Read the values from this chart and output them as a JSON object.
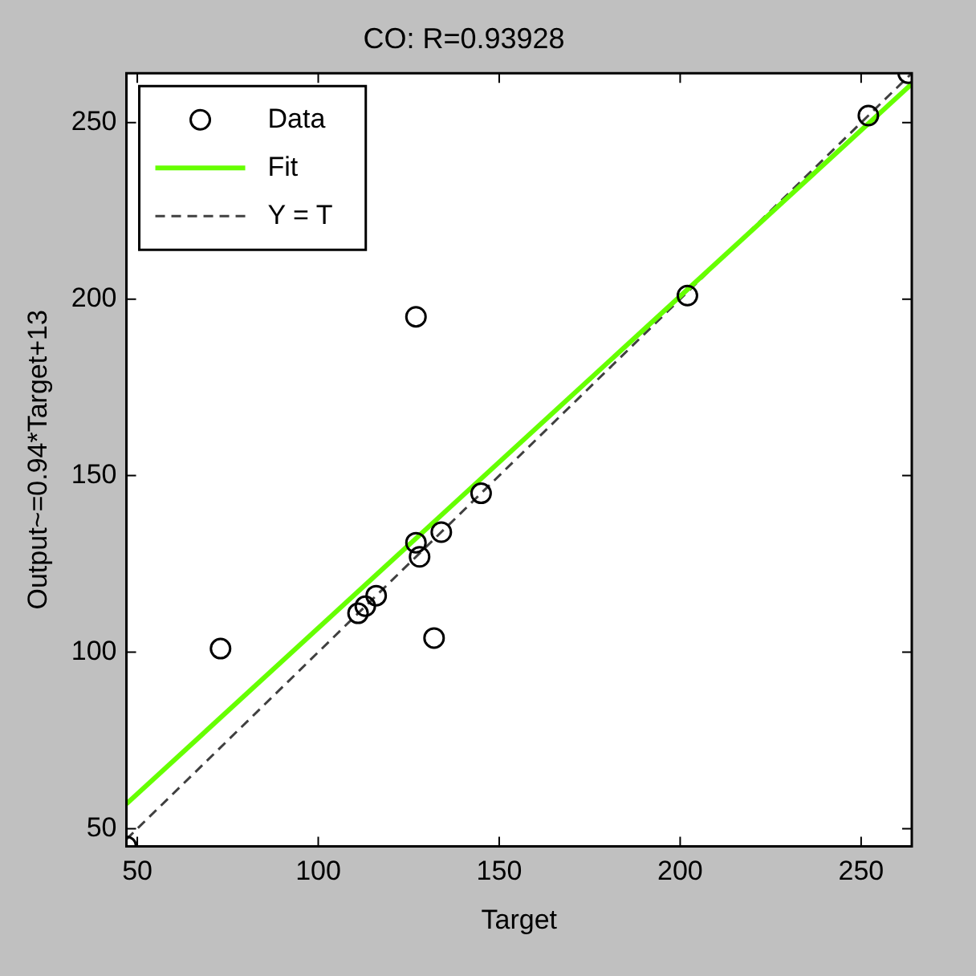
{
  "chart_data": {
    "type": "scatter",
    "title": "CO: R=0.93928",
    "xlabel": "Target",
    "ylabel": "Output~=0.94*Target+13",
    "xlim": [
      47,
      264
    ],
    "ylim": [
      45,
      264
    ],
    "xticks": [
      50,
      100,
      150,
      200,
      250
    ],
    "yticks": [
      50,
      100,
      150,
      200,
      250
    ],
    "grid": false,
    "legend": "top left",
    "series": [
      {
        "name": "Data",
        "type": "scatter",
        "color": "#000000",
        "marker": "circle",
        "x": [
          47,
          73,
          111,
          113,
          116,
          127,
          128,
          134,
          132,
          145,
          127,
          202,
          252,
          263
        ],
        "values": [
          45,
          101,
          111,
          113,
          116,
          131,
          127,
          134,
          104,
          145,
          195,
          201,
          252,
          264
        ]
      },
      {
        "name": "Fit",
        "type": "line",
        "color": "#66ff00",
        "marker": "none",
        "line_style": "solid",
        "x": [
          47,
          264
        ],
        "values": [
          57,
          261
        ]
      },
      {
        "name": "Y = T",
        "type": "line",
        "color": "#404040",
        "marker": "none",
        "line_style": "dashed",
        "x": [
          47,
          264
        ],
        "values": [
          47,
          264
        ]
      }
    ]
  }
}
